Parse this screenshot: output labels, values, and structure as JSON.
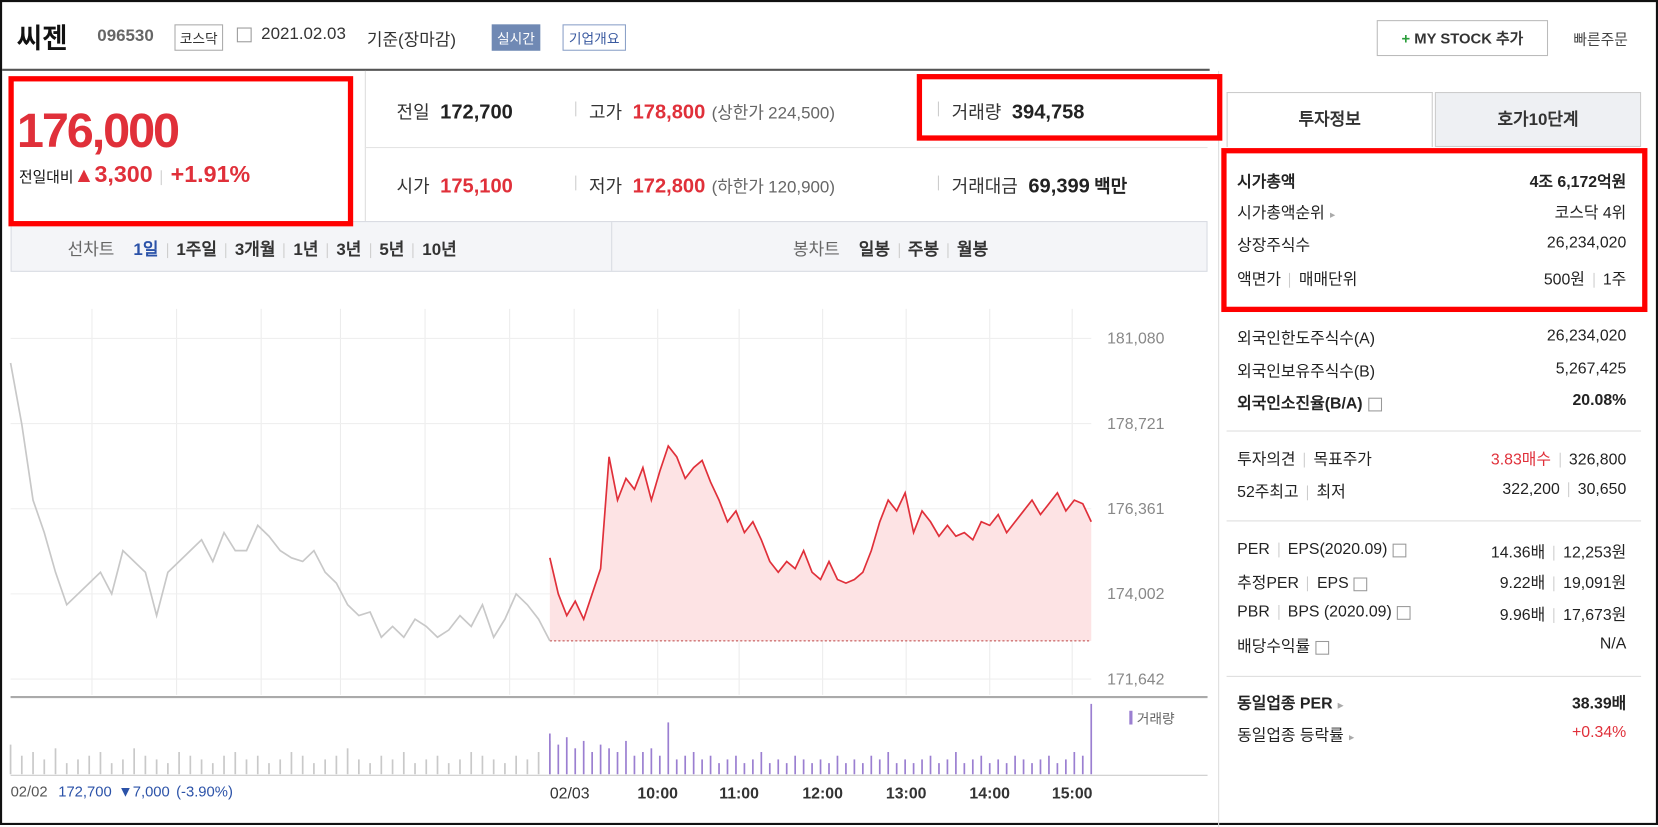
{
  "header": {
    "name": "씨젠",
    "code": "096530",
    "market": "코스닥",
    "date": "2021.02.03",
    "basis": "기준(장마감)",
    "realtime": "실시간",
    "overview": "기업개요",
    "my_stock": "MY STOCK 추가",
    "quick_order": "빠른주문"
  },
  "price": {
    "now": "176,000",
    "change_label": "전일대비",
    "change": "3,300",
    "change_rate": "+1.91%"
  },
  "summary": [
    {
      "label": "전일",
      "value": "172,700"
    },
    {
      "label": "고가",
      "value": "178,800",
      "limit_label": "상한가",
      "limit": "224,500",
      "color": "#e0303a"
    },
    {
      "label": "거래량",
      "value": "394,758"
    },
    {
      "label": "시가",
      "value": "175,100",
      "color": "#e0303a"
    },
    {
      "label": "저가",
      "value": "172,800",
      "limit_label": "하한가",
      "limit": "120,900",
      "color": "#e0303a"
    },
    {
      "label": "거래대금",
      "value": "69,399",
      "unit": "백만"
    }
  ],
  "chart_tabs": {
    "line_label": "선차트",
    "line_periods": [
      "1일",
      "1주일",
      "3개월",
      "1년",
      "3년",
      "5년",
      "10년"
    ],
    "candle_label": "봉차트",
    "candle_periods": [
      "일봉",
      "주봉",
      "월봉"
    ]
  },
  "chart_data": {
    "type": "line",
    "xtick_labels": [
      "02/03",
      "10:00",
      "11:00",
      "12:00",
      "13:00",
      "14:00",
      "15:00"
    ],
    "ylim": [
      171642,
      181080
    ],
    "yticks": [
      {
        "value": 181080,
        "label": "181,080"
      },
      {
        "value": 178721,
        "label": "178,721"
      },
      {
        "value": 176361,
        "label": "176,361"
      },
      {
        "value": 174002,
        "label": "174,002"
      },
      {
        "value": 171642,
        "label": "171,642"
      }
    ],
    "baseline": 172700,
    "fill": "#fde3e4",
    "series": [
      {
        "color": "#c8c8c8",
        "values": [
          180400,
          178700,
          176600,
          175700,
          174600,
          173700,
          174000,
          174300,
          174600,
          174000,
          175200,
          174900,
          174600,
          173400,
          174600,
          174900,
          175200,
          175500,
          174900,
          175700,
          175200,
          175200,
          175900,
          175600,
          175200,
          175000,
          174900,
          175200,
          174600,
          174300,
          173700,
          173400,
          173500,
          172800,
          173100,
          172800,
          173300,
          173100,
          172800,
          173000,
          173400,
          173100,
          173700,
          172800,
          173300,
          174000,
          173700,
          173300,
          172700
        ]
      },
      {
        "color": "#e0303a",
        "values": [
          175000,
          174000,
          173400,
          173800,
          173300,
          174000,
          174700,
          177800,
          176600,
          177200,
          176900,
          177500,
          176600,
          177400,
          178100,
          177800,
          177200,
          177500,
          177700,
          177100,
          176600,
          176000,
          176300,
          175700,
          176000,
          175500,
          174900,
          174600,
          174900,
          174700,
          175200,
          174600,
          174400,
          174900,
          174400,
          174300,
          174400,
          174600,
          175200,
          176000,
          176600,
          176300,
          176800,
          175700,
          176300,
          176000,
          175600,
          175900,
          175600,
          175700,
          175500,
          176000,
          175900,
          176200,
          175700,
          176000,
          176300,
          176600,
          176200,
          176500,
          176800,
          176300,
          176600,
          176500,
          176000
        ]
      }
    ],
    "volume": {
      "label": "거래량",
      "color": "#9b7fd1",
      "ylim": [
        0,
        100
      ],
      "series": [
        {
          "color": "#c9c9c9",
          "values": [
            40,
            25,
            30,
            20,
            35,
            15,
            20,
            25,
            30,
            15,
            20,
            35,
            25,
            20,
            15,
            30,
            25,
            20,
            15,
            25,
            30,
            20,
            25,
            15,
            20,
            30,
            25,
            15,
            20,
            25,
            35,
            20,
            15,
            25,
            20,
            30,
            15,
            20,
            25,
            15,
            20,
            30,
            25,
            20,
            15,
            25,
            20,
            30,
            45
          ]
        },
        {
          "color": "#9b7fd1",
          "values": [
            55,
            40,
            50,
            35,
            45,
            30,
            40,
            35,
            30,
            45,
            25,
            30,
            35,
            25,
            70,
            20,
            25,
            30,
            20,
            25,
            15,
            20,
            25,
            15,
            20,
            30,
            15,
            20,
            15,
            25,
            20,
            15,
            20,
            15,
            25,
            15,
            20,
            15,
            25,
            20,
            30,
            15,
            20,
            15,
            20,
            25,
            15,
            20,
            30,
            15,
            20,
            25,
            15,
            20,
            15,
            25,
            20,
            15,
            20,
            25,
            15,
            20,
            30,
            25,
            95
          ]
        }
      ]
    }
  },
  "footer": {
    "date": "02/02",
    "close": "172,700",
    "change": "▼7,000",
    "rate": "(-3.90%)"
  },
  "investment": {
    "tabs": [
      "투자정보",
      "호가10단계"
    ],
    "groups": [
      [
        {
          "label": [
            "시가총액"
          ],
          "value": [
            "4조 6,172억원"
          ],
          "bold": true
        },
        {
          "label": [
            "시가총액순위"
          ],
          "value": [
            "코스닥 4위"
          ],
          "more": true
        },
        {
          "label": [
            "상장주식수"
          ],
          "value": [
            "26,234,020"
          ]
        },
        {
          "label": [
            "액면가",
            "매매단위"
          ],
          "value": [
            "500원",
            "1주"
          ]
        }
      ],
      [
        {
          "label": [
            "외국인한도주식수(A)"
          ],
          "value": [
            "26,234,020"
          ]
        },
        {
          "label": [
            "외국인보유주식수(B)"
          ],
          "value": [
            "5,267,425"
          ]
        },
        {
          "label": [
            "외국인소진율(B/A)"
          ],
          "value": [
            "20.08%"
          ],
          "bold": true,
          "help": true
        }
      ],
      [
        {
          "label": [
            "투자의견",
            "목표주가"
          ],
          "value": [
            "3.83매수",
            "326,800"
          ],
          "value_color": "#e0303a"
        },
        {
          "label": [
            "52주최고",
            "최저"
          ],
          "value": [
            "322,200",
            "30,650"
          ]
        }
      ],
      [
        {
          "label": [
            "PER",
            "EPS(2020.09)"
          ],
          "value": [
            "14.36배",
            "12,253원"
          ],
          "help": true
        },
        {
          "label": [
            "추정PER",
            "EPS"
          ],
          "value": [
            "9.22배",
            "19,091원"
          ],
          "help": true
        },
        {
          "label": [
            "PBR",
            "BPS (2020.09)"
          ],
          "value": [
            "9.96배",
            "17,673원"
          ],
          "help": true
        },
        {
          "label": [
            "배당수익률"
          ],
          "value": [
            "N/A"
          ],
          "help": true
        }
      ],
      [
        {
          "label": [
            "동일업종 PER"
          ],
          "value": [
            "38.39배"
          ],
          "bold": true,
          "more": true
        },
        {
          "label": [
            "동일업종 등락률"
          ],
          "value": [
            "+0.34%"
          ],
          "value_color": "#e0303a",
          "more": true
        }
      ]
    ]
  }
}
